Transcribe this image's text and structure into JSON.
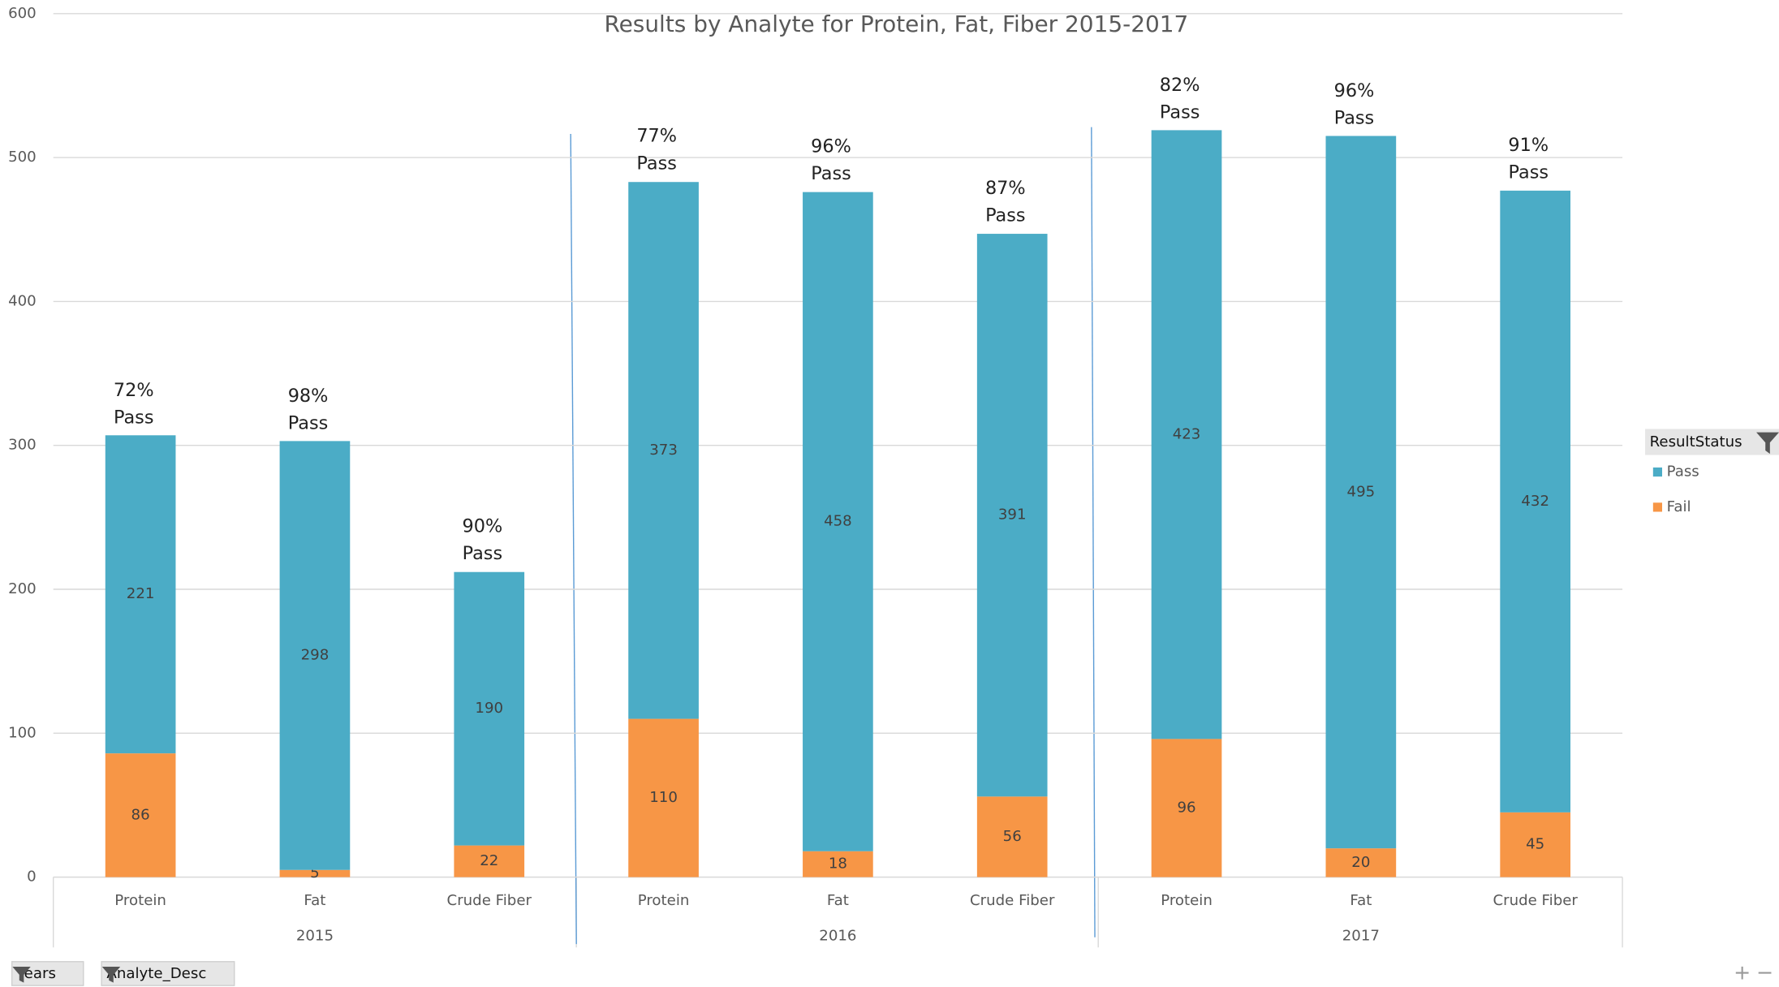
{
  "chart_data": {
    "type": "stacked_bar",
    "title": "Results by Analyte for Protein, Fat, Fiber 2015-2017",
    "categories": [
      "Protein",
      "Fat",
      "Crude Fiber",
      "Protein",
      "Fat",
      "Crude Fiber",
      "Protein",
      "Fat",
      "Crude Fiber"
    ],
    "groups": [
      "2015",
      "2016",
      "2017"
    ],
    "series": [
      {
        "name": "Pass",
        "color": "#4bacc6",
        "values": [
          221,
          298,
          190,
          373,
          458,
          391,
          423,
          495,
          432
        ]
      },
      {
        "name": "Fail",
        "color": "#f79646",
        "values": [
          86,
          5,
          22,
          110,
          18,
          56,
          96,
          20,
          45
        ]
      }
    ],
    "annotations": [
      "72%\nPass",
      "98%\nPass",
      "90%\nPass",
      "77%\nPass",
      "96%\nPass",
      "87%\nPass",
      "82%\nPass",
      "96%\nPass",
      "91%\nPass"
    ],
    "ylim": [
      0,
      600
    ],
    "yticks": [
      0,
      100,
      200,
      300,
      400,
      500,
      600
    ],
    "grid": true,
    "legend_title": "ResultStatus",
    "filter_buttons": [
      "Years",
      "Analyte_Desc"
    ]
  }
}
